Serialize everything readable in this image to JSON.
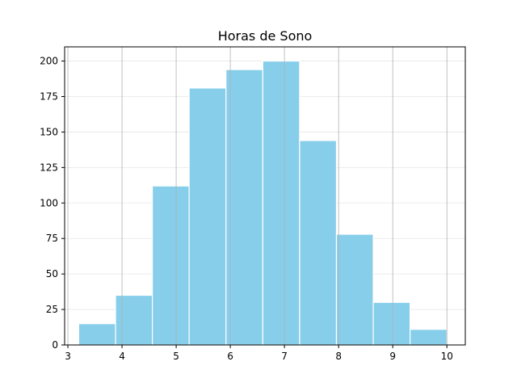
{
  "chart_data": {
    "type": "bar",
    "title": "Horas de Sono",
    "xlabel": "",
    "ylabel": "",
    "bin_edges": [
      3.2,
      3.88,
      4.56,
      5.24,
      5.92,
      6.6,
      7.28,
      7.96,
      8.64,
      9.32,
      10.0
    ],
    "values": [
      15,
      35,
      112,
      181,
      194,
      200,
      144,
      78,
      30,
      11
    ],
    "xlim": [
      2.94,
      10.34
    ],
    "ylim": [
      0,
      210
    ],
    "xticks": [
      3,
      4,
      5,
      6,
      7,
      8,
      9,
      10
    ],
    "yticks": [
      0,
      25,
      50,
      75,
      100,
      125,
      150,
      175,
      200
    ],
    "grid": true,
    "colors": {
      "bar": "#87ceeb",
      "bar_edge": "#ffffff",
      "x_grid": "#b0b0b0",
      "y_grid": "#e6e6e6",
      "axes": "#000000"
    }
  }
}
